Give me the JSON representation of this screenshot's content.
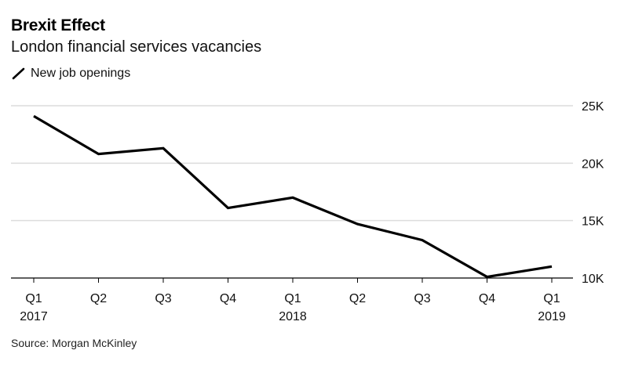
{
  "header": {
    "title": "Brexit Effect",
    "subtitle": "London financial services vacancies",
    "legend_label": "New job openings"
  },
  "footer": {
    "source": "Source: Morgan McKinley"
  },
  "colors": {
    "line": "#000000",
    "grid": "#dcdcdc",
    "axis": "#000000"
  },
  "chart_data": {
    "type": "line",
    "title": "Brexit Effect",
    "subtitle": "London financial services vacancies",
    "xlabel": "",
    "ylabel": "",
    "categories": [
      "Q1 2017",
      "Q2 2017",
      "Q3 2017",
      "Q4 2017",
      "Q1 2018",
      "Q2 2018",
      "Q3 2018",
      "Q4 2018",
      "Q1 2019"
    ],
    "x_tick_labels": [
      {
        "line1": "Q1",
        "line2": "2017"
      },
      {
        "line1": "Q2",
        "line2": ""
      },
      {
        "line1": "Q3",
        "line2": ""
      },
      {
        "line1": "Q4",
        "line2": ""
      },
      {
        "line1": "Q1",
        "line2": "2018"
      },
      {
        "line1": "Q2",
        "line2": ""
      },
      {
        "line1": "Q3",
        "line2": ""
      },
      {
        "line1": "Q4",
        "line2": ""
      },
      {
        "line1": "Q1",
        "line2": "2019"
      }
    ],
    "series": [
      {
        "name": "New job openings",
        "values": [
          24100,
          20800,
          21300,
          16100,
          17000,
          14700,
          13300,
          10100,
          11000
        ]
      }
    ],
    "y_ticks": [
      10000,
      15000,
      20000,
      25000
    ],
    "y_tick_labels": [
      "10K",
      "15K",
      "20K",
      "25K"
    ],
    "ylim": [
      10000,
      25000
    ],
    "y_axis_side": "right",
    "grid": true,
    "legend_position": "top-left"
  }
}
